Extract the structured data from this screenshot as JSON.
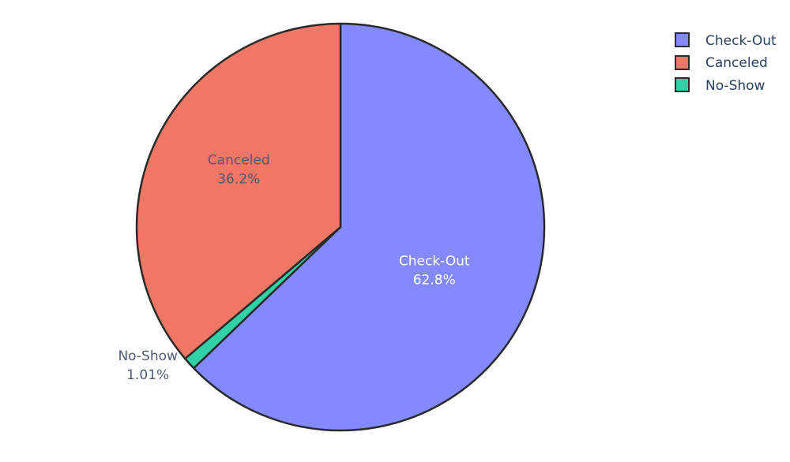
{
  "chart_data": {
    "type": "pie",
    "slices": [
      {
        "label": "Check-Out",
        "value": 62.8,
        "percent_label": "62.8%",
        "color": "#8389fe",
        "text_color": "#ffffff"
      },
      {
        "label": "No-Show",
        "value": 1.01,
        "percent_label": "1.01%",
        "color": "#30d1a4",
        "text_color": "#4f5b73"
      },
      {
        "label": "Canceled",
        "value": 36.2,
        "percent_label": "36.2%",
        "color": "#f07765",
        "text_color": "#585870"
      }
    ],
    "legend": {
      "placement": "top-right",
      "entries": [
        {
          "label": "Check-Out",
          "color": "#8389fe"
        },
        {
          "label": "Canceled",
          "color": "#f07765"
        },
        {
          "label": "No-Show",
          "color": "#30d1a4"
        }
      ]
    },
    "outline_color": "#2a2a2a"
  }
}
